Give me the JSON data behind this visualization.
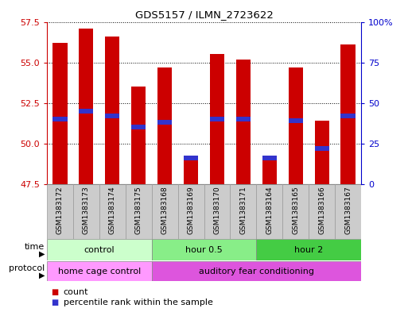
{
  "title": "GDS5157 / ILMN_2723622",
  "samples": [
    "GSM1383172",
    "GSM1383173",
    "GSM1383174",
    "GSM1383175",
    "GSM1383168",
    "GSM1383169",
    "GSM1383170",
    "GSM1383171",
    "GSM1383164",
    "GSM1383165",
    "GSM1383166",
    "GSM1383167"
  ],
  "count_values": [
    56.2,
    57.1,
    56.6,
    53.5,
    54.7,
    49.2,
    55.5,
    55.2,
    49.2,
    54.7,
    51.4,
    56.1
  ],
  "percentile_values": [
    51.5,
    52.0,
    51.7,
    51.0,
    51.3,
    49.1,
    51.5,
    51.5,
    49.1,
    51.4,
    49.7,
    51.7
  ],
  "bar_color": "#cc0000",
  "blue_color": "#3333cc",
  "ylim_left": [
    47.5,
    57.5
  ],
  "ylim_right": [
    0,
    100
  ],
  "yticks_left": [
    47.5,
    50.0,
    52.5,
    55.0,
    57.5
  ],
  "yticks_right": [
    0,
    25,
    50,
    75,
    100
  ],
  "ytick_labels_right": [
    "0",
    "25",
    "50",
    "75",
    "100%"
  ],
  "groups": [
    {
      "label": "control",
      "start": 0,
      "end": 4,
      "color": "#ccffcc"
    },
    {
      "label": "hour 0.5",
      "start": 4,
      "end": 8,
      "color": "#88ee88"
    },
    {
      "label": "hour 2",
      "start": 8,
      "end": 12,
      "color": "#44cc44"
    }
  ],
  "protocols": [
    {
      "label": "home cage control",
      "start": 0,
      "end": 4,
      "color": "#ff99ff"
    },
    {
      "label": "auditory fear conditioning",
      "start": 4,
      "end": 12,
      "color": "#dd55dd"
    }
  ],
  "time_label": "time",
  "protocol_label": "protocol",
  "legend_count_label": "count",
  "legend_percentile_label": "percentile rank within the sample",
  "bar_width": 0.55,
  "background_color": "#ffffff",
  "left_tick_color": "#cc0000",
  "right_tick_color": "#0000cc",
  "cell_bg": "#cccccc",
  "cell_border": "#999999"
}
